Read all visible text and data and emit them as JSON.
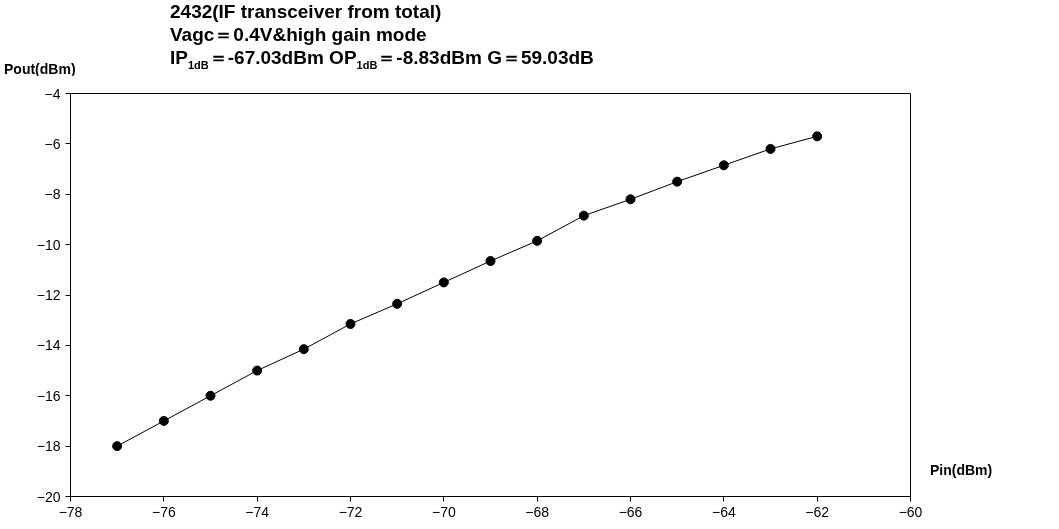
{
  "chart_data": {
    "type": "line",
    "title": "2432(IF transceiver from total)",
    "subtitle": [
      "Vagc＝0.4V&high gain mode",
      "IP$_{1dB}$＝-67.03dBm OP$_{1dB}$＝-8.83dBm G＝59.03dB"
    ],
    "xlabel": "Pin(dBm)",
    "ylabel": "Pout(dBm)",
    "x": [
      -77,
      -76,
      -75,
      -74,
      -73,
      -72,
      -71,
      -70,
      -69,
      -68,
      -67,
      -66,
      -65,
      -64,
      -63,
      -62
    ],
    "series": [
      {
        "color": "#000000",
        "values": [
          -18.0,
          -17.0,
          -16.0,
          -15.0,
          -14.15,
          -13.15,
          -12.35,
          -11.5,
          -10.65,
          -9.85,
          -8.85,
          -8.2,
          -7.5,
          -6.85,
          -6.2,
          -5.7
        ]
      }
    ],
    "xlim": [
      -78,
      -60
    ],
    "ylim": [
      -20,
      -4
    ],
    "xticks": [
      -78,
      -76,
      -74,
      -72,
      -70,
      -68,
      -66,
      -64,
      -62,
      -60
    ],
    "yticks": [
      -20,
      -18,
      -16,
      -14,
      -12,
      -10,
      -8,
      -6,
      -4
    ],
    "marker": "circle",
    "line_style": "solid",
    "grid": false
  }
}
